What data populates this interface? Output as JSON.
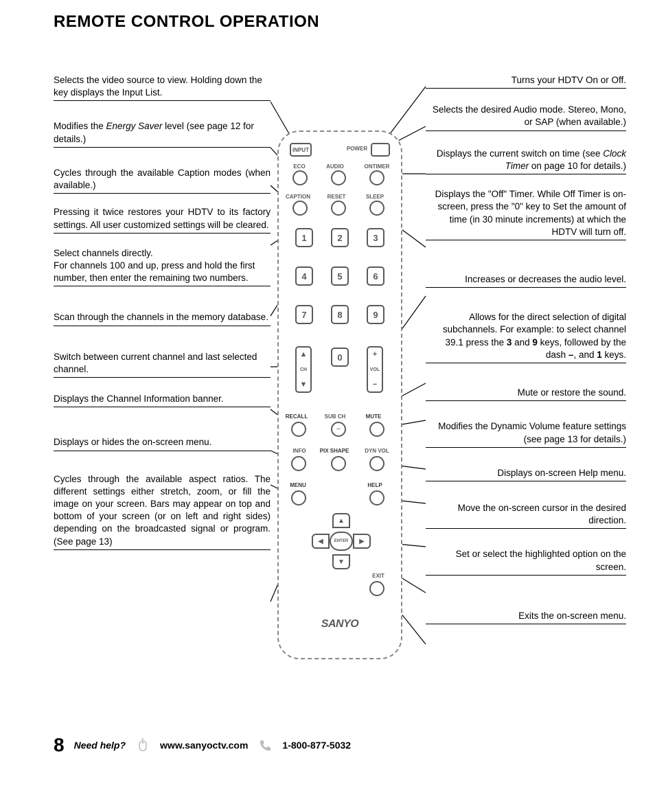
{
  "title": "REMOTE CONTROL OPERATION",
  "left": [
    {
      "text": "Selects the video source to view. Holding down the key displays the Input List."
    },
    {
      "html": "Modifies the <em>Energy Saver</em> level (see page 12 for details.)"
    },
    {
      "text": "Cycles through the available Caption modes (when available.)",
      "justify": true
    },
    {
      "text": "Pressing it twice restores your HDTV to its factory settings. All user customized settings will be cleared.",
      "justify": true
    },
    {
      "text": "Select channels directly.\nFor channels 100 and up, press and hold the first number, then enter the remaining two numbers."
    },
    {
      "text": "Scan through the channels in the memory database.",
      "justify": true
    },
    {
      "text": "Switch between current channel and last selected channel."
    },
    {
      "text": "Displays the Channel Information banner."
    },
    {
      "text": "Displays or hides the on-screen menu."
    },
    {
      "text": "Cycles through the available aspect ratios. The different settings either stretch, zoom, or fill the image on your screen. Bars may appear on top and bottom of your screen (or on left and right sides) depending on the broadcasted signal or program. (See page 13)",
      "justify": true
    }
  ],
  "right": [
    {
      "text": "Turns your HDTV On or Off."
    },
    {
      "text": "Selects the desired Audio mode. Stereo, Mono, or SAP (when available.)"
    },
    {
      "html": "Displays the current switch on time (see <em>Clock Timer</em> on page 10 for details.)"
    },
    {
      "text": "Displays the \"Off\" Timer. While Off Timer is on-screen, press the \"0\" key to Set the amount of time (in 30 minute increments) at which the HDTV will turn off.",
      "justify": true
    },
    {
      "text": "Increases or decreases the audio level."
    },
    {
      "html": "Allows for the direct selection of  digital subchannels. For example: to select channel 39.1 press the <b>3</b> and <b>9</b> keys, followed by the dash <b>–</b>, and <b>1</b> keys.",
      "justify": true
    },
    {
      "text": "Mute or restore the sound."
    },
    {
      "text": "Modifies the Dynamic Volume feature settings (see page 13 for details.)"
    },
    {
      "text": "Displays on-screen Help menu."
    },
    {
      "text": "Move the on-screen cursor in the desired direction."
    },
    {
      "text": "Set or select the highlighted option on the screen."
    },
    {
      "text": "Exits the on-screen menu."
    }
  ],
  "remote": {
    "labels": {
      "input": "INPUT",
      "power": "POWER",
      "eco": "ECO",
      "audio": "AUDIO",
      "ontimer": "ONTIMER",
      "caption": "CAPTION",
      "reset": "RESET",
      "sleep": "SLEEP",
      "ch": "CH",
      "vol": "VOL",
      "recall": "RECALL",
      "subch": "SUB CH",
      "mute": "MUTE",
      "info": "INFO",
      "pixshape": "PIX SHAPE",
      "dynvol": "DYN VOL",
      "menu": "MENU",
      "help": "HELP",
      "enter": "ENTER",
      "exit": "EXIT",
      "brand": "SANYO"
    },
    "numbers": [
      "1",
      "2",
      "3",
      "4",
      "5",
      "6",
      "7",
      "8",
      "9",
      "0"
    ]
  },
  "footer": {
    "page": "8",
    "needhelp": "Need help?",
    "web": "www.sanyoctv.com",
    "phone": "1-800-877-5032"
  },
  "colors": {
    "text": "#000000",
    "remote_stroke": "#5a5a5a",
    "icon_gray": "#999999"
  }
}
